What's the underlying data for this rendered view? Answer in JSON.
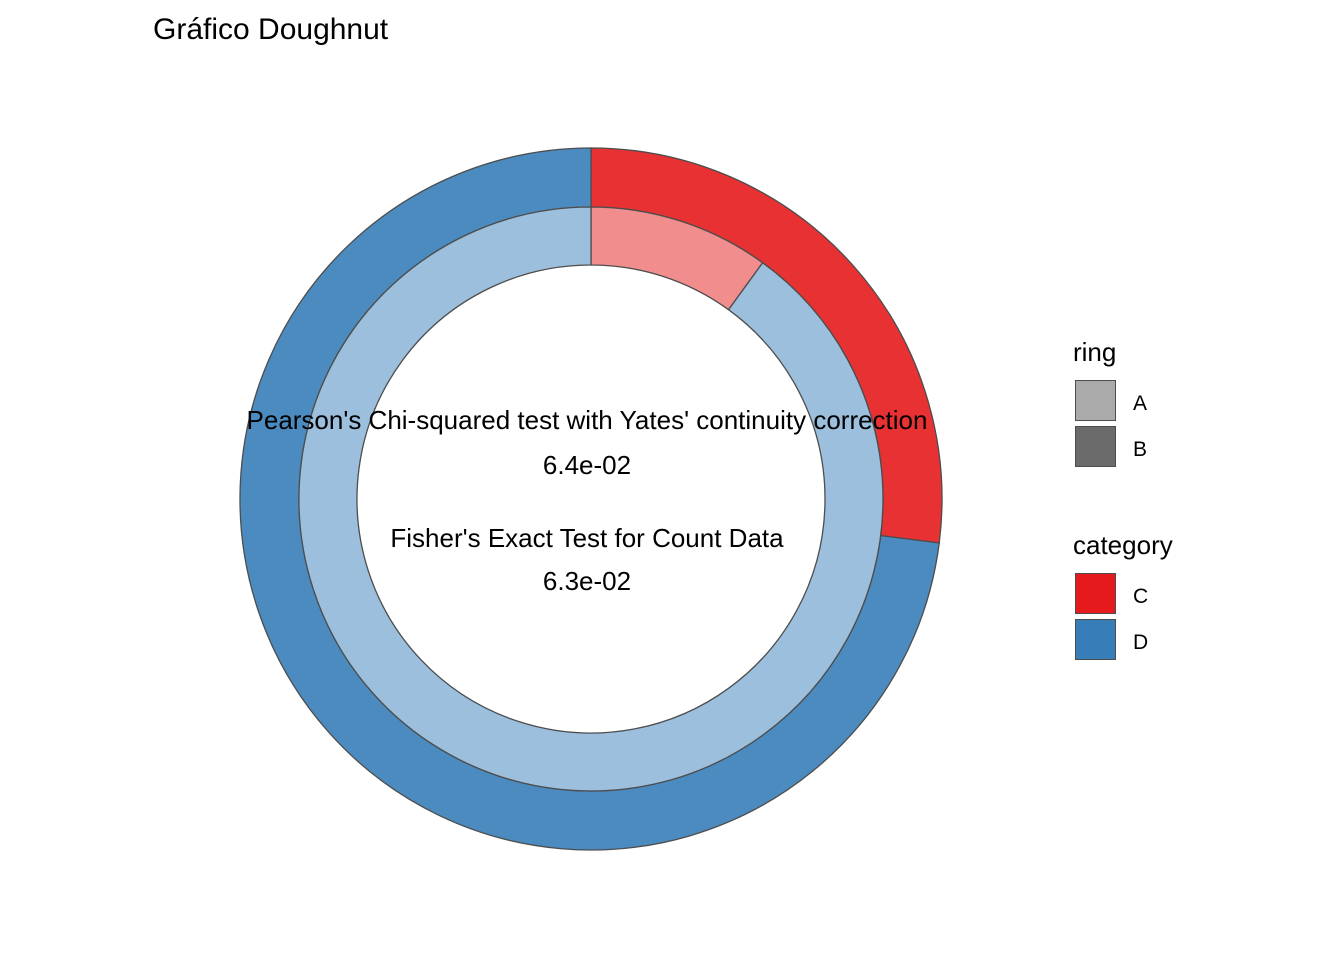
{
  "chart_data": {
    "type": "pie",
    "title": "Gráfico Doughnut",
    "rings": [
      {
        "ring": "A",
        "categories": [
          "C",
          "D"
        ],
        "values": [
          0.27,
          0.73
        ]
      },
      {
        "ring": "B",
        "categories": [
          "C",
          "D"
        ],
        "values": [
          0.1,
          0.9
        ]
      }
    ],
    "colors": {
      "A": {
        "C": "#e41a1c",
        "D": "#377eb8"
      },
      "B": {
        "C": "#e41a1c",
        "D": "#377eb8"
      }
    },
    "ring_alpha": {
      "A": 0.9,
      "B": 0.5
    },
    "annotations": [
      {
        "label": "Pearson's Chi-squared test with Yates' continuity correction",
        "value": "6.4e-02"
      },
      {
        "label": "Fisher's Exact Test for Count Data",
        "value": "6.3e-02"
      }
    ],
    "legend": {
      "placement": "right",
      "groups": [
        {
          "title": "ring",
          "items": [
            {
              "label": "A",
              "color": "#aaaaaa"
            },
            {
              "label": "B",
              "color": "#6b6b6b"
            }
          ]
        },
        {
          "title": "category",
          "items": [
            {
              "label": "C",
              "color": "#e41a1c"
            },
            {
              "label": "D",
              "color": "#377eb8"
            }
          ]
        }
      ]
    }
  }
}
